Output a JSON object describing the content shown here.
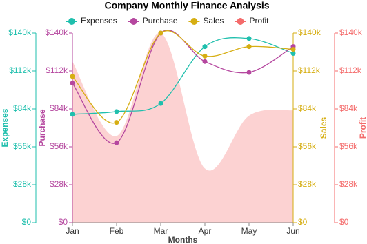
{
  "chart_data": {
    "type": "line",
    "title": "Company Monthly Finance Analysis",
    "x_label": "Months",
    "categories": [
      "Jan",
      "Feb",
      "Mar",
      "Apr",
      "May",
      "Jun"
    ],
    "ylim": [
      0,
      140000
    ],
    "yticks": [
      {
        "value": 0,
        "label": "$0"
      },
      {
        "value": 28000,
        "label": "$28k"
      },
      {
        "value": 56000,
        "label": "$56k"
      },
      {
        "value": 84000,
        "label": "$84k"
      },
      {
        "value": 112000,
        "label": "$112k"
      },
      {
        "value": 140000,
        "label": "$140k"
      }
    ],
    "series": [
      {
        "name": "Expenses",
        "axis_title": "Expenses",
        "color": "#1fbfad",
        "style": "line",
        "values": [
          80000,
          82000,
          88000,
          130000,
          136000,
          125000
        ]
      },
      {
        "name": "Purchase",
        "axis_title": "Purchase",
        "color": "#b5479f",
        "style": "line",
        "values": [
          103000,
          59000,
          140000,
          119000,
          111000,
          130000
        ]
      },
      {
        "name": "Sales",
        "axis_title": "Sales",
        "color": "#d6ae12",
        "style": "line",
        "values": [
          108000,
          74000,
          140000,
          123000,
          130000,
          128000
        ]
      },
      {
        "name": "Profit",
        "axis_title": "Profit",
        "color": "#f46b6b",
        "style": "area",
        "values": [
          119000,
          64000,
          140000,
          40000,
          79000,
          83000
        ]
      }
    ]
  }
}
